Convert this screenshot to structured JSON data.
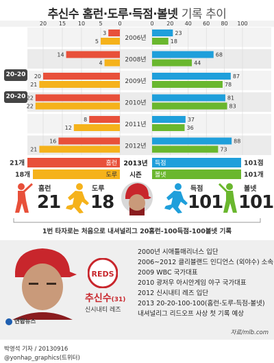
{
  "title_bold": "추신수 홈런·도루·득점·볼넷",
  "title_light": "기록 추이",
  "colors": {
    "homerun": "#e8503a",
    "steal": "#f5b21b",
    "runs": "#1f9fdb",
    "walks": "#6ab72e",
    "dark": "#333333"
  },
  "chart_data": {
    "type": "bar",
    "categories": [
      "2006년",
      "2008년",
      "2009년",
      "2010년",
      "2011년",
      "2012년"
    ],
    "left_axis": {
      "ticks": [
        20,
        15,
        10,
        5,
        0
      ],
      "xlim": [
        0,
        22
      ]
    },
    "right_axis": {
      "ticks": [
        0,
        20,
        40,
        60,
        80,
        100
      ],
      "xlim": [
        0,
        100
      ]
    },
    "series": [
      {
        "name": "홈런",
        "side": "left",
        "values": [
          3,
          14,
          20,
          22,
          8,
          16
        ]
      },
      {
        "name": "도루",
        "side": "left",
        "values": [
          5,
          4,
          21,
          22,
          12,
          21
        ]
      },
      {
        "name": "득점",
        "side": "right",
        "values": [
          23,
          68,
          87,
          81,
          37,
          88
        ]
      },
      {
        "name": "볼넷",
        "side": "right",
        "values": [
          18,
          44,
          78,
          83,
          36,
          73
        ]
      }
    ],
    "season2013": {
      "year_label": "2013년",
      "year_label2": "시즌",
      "homerun": {
        "label": "홈런",
        "value_label": "21개",
        "value": 21
      },
      "steal": {
        "label": "도루",
        "value_label": "18개",
        "value": 18
      },
      "runs": {
        "label": "득점",
        "value_label": "101점",
        "value": 101
      },
      "walks": {
        "label": "볼넷",
        "value_label": "101개",
        "value": 101
      }
    }
  },
  "badges": [
    "20-20",
    "20-20"
  ],
  "stats": [
    {
      "label": "홈런",
      "value": "21",
      "icon": "batter-icon",
      "color": "#e8503a"
    },
    {
      "label": "도루",
      "value": "18",
      "icon": "runner-icon",
      "color": "#f5b21b"
    },
    {
      "label": "득점",
      "value": "101",
      "icon": "runner-icon",
      "color": "#1f9fdb"
    },
    {
      "label": "볼넷",
      "value": "101",
      "icon": "batter-icon",
      "color": "#6ab72e"
    }
  ],
  "caption": "1번 타자로는 처음으로 내셔널리그 20홈런-100득점-100볼넷 기록",
  "profile": {
    "name": "추신수",
    "age": "(31)",
    "team": "신시내티 레즈",
    "logo_text": "REDS",
    "career": [
      "2000년 시애틀매리너스 입단",
      "2006~2012 클리블랜드 인디언스 (외야수) 소속",
      "2009 WBC 국가대표",
      "2010 광저우 아시안게임 야구 국가대표",
      "2012 신시내티 레즈 입단",
      "2013 20-20-100-100(홈런-도루-득점-볼넷)",
      "내셔널리그 리드오프 사상 첫 기록 예상"
    ],
    "source": "자료/mlb.com"
  },
  "agency": "연합뉴스",
  "credit_line1": "박영석 기자 / 20130916",
  "credit_line2": "@yonhap_graphics(트위터)"
}
